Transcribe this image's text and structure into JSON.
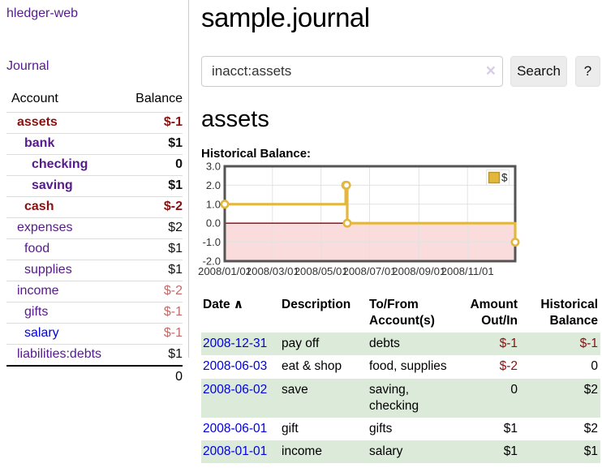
{
  "app": {
    "title": "hledger-web"
  },
  "sidebar": {
    "journal_label": "Journal",
    "accounts": {
      "account_header": "Account",
      "balance_header": "Balance",
      "rows": [
        {
          "name": "assets",
          "balance": "$-1",
          "level": 0,
          "emph": true,
          "name_color": "darkred",
          "balance_color": "darkred"
        },
        {
          "name": "bank",
          "balance": "$1",
          "level": 1,
          "emph": true,
          "name_color": "purple",
          "balance_color": "black"
        },
        {
          "name": "checking",
          "balance": "0",
          "level": 2,
          "emph": true,
          "name_color": "purple",
          "balance_color": "black"
        },
        {
          "name": "saving",
          "balance": "$1",
          "level": 2,
          "emph": true,
          "name_color": "purple",
          "balance_color": "black"
        },
        {
          "name": "cash",
          "balance": "$-2",
          "level": 1,
          "emph": true,
          "name_color": "darkred",
          "balance_color": "darkred"
        },
        {
          "name": "expenses",
          "balance": "$2",
          "level": 0,
          "emph": false,
          "name_color": "purple",
          "balance_color": "black"
        },
        {
          "name": "food",
          "balance": "$1",
          "level": 1,
          "emph": false,
          "name_color": "purple",
          "balance_color": "black"
        },
        {
          "name": "supplies",
          "balance": "$1",
          "level": 1,
          "emph": false,
          "name_color": "purple",
          "balance_color": "black"
        },
        {
          "name": "income",
          "balance": "$-2",
          "level": 0,
          "emph": false,
          "name_color": "purple",
          "balance_color": "softred"
        },
        {
          "name": "gifts",
          "balance": "$-1",
          "level": 1,
          "emph": false,
          "name_color": "purple",
          "balance_color": "softred"
        },
        {
          "name": "salary",
          "balance": "$-1",
          "level": 1,
          "emph": false,
          "name_color": "blue",
          "balance_color": "softred"
        },
        {
          "name": "liabilities:debts",
          "balance": "$1",
          "level": 0,
          "emph": false,
          "name_color": "purple",
          "balance_color": "black"
        }
      ],
      "total": "0"
    }
  },
  "main": {
    "title": "sample.journal",
    "search": {
      "value": "inacct:assets",
      "clear_icon": "×",
      "button_label": "Search",
      "help_label": "?"
    },
    "account_heading": "assets",
    "chart_title": "Historical Balance:"
  },
  "register": {
    "headers": [
      "Date",
      "Description",
      "To/From Account(s)",
      "Amount Out/In",
      "Historical Balance"
    ],
    "sort_icon": "∧",
    "rows": [
      {
        "date": "2008-12-31",
        "description": "pay off",
        "accounts": "debts",
        "amount": "$-1",
        "balance": "$-1",
        "amount_neg": true,
        "balance_neg": true,
        "stripe": true
      },
      {
        "date": "2008-06-03",
        "description": "eat & shop",
        "accounts": "food, supplies",
        "amount": "$-2",
        "balance": "0",
        "amount_neg": true,
        "balance_neg": false,
        "stripe": false
      },
      {
        "date": "2008-06-02",
        "description": "save",
        "accounts": "saving, checking",
        "amount": "0",
        "balance": "$2",
        "amount_neg": false,
        "balance_neg": false,
        "stripe": true
      },
      {
        "date": "2008-06-01",
        "description": "gift",
        "accounts": "gifts",
        "amount": "$1",
        "balance": "$2",
        "amount_neg": false,
        "balance_neg": false,
        "stripe": false
      },
      {
        "date": "2008-01-01",
        "description": "income",
        "accounts": "salary",
        "amount": "$1",
        "balance": "$1",
        "amount_neg": false,
        "balance_neg": false,
        "stripe": true
      }
    ]
  },
  "chart_data": {
    "type": "line",
    "step": true,
    "title": "Historical Balance",
    "series": [
      {
        "name": "$",
        "points": [
          {
            "date": "2008-01-01",
            "value": 1
          },
          {
            "date": "2008-06-01",
            "value": 2
          },
          {
            "date": "2008-06-02",
            "value": 2
          },
          {
            "date": "2008-06-03",
            "value": 0
          },
          {
            "date": "2008-12-31",
            "value": -1
          }
        ]
      }
    ],
    "x_range": [
      "2008-01-01",
      "2008-12-31"
    ],
    "ylim": [
      -2,
      3
    ],
    "y_ticks": [
      {
        "v": 3,
        "label": "3.0"
      },
      {
        "v": 2,
        "label": "2.0"
      },
      {
        "v": 1,
        "label": "1.0"
      },
      {
        "v": 0,
        "label": "0.0"
      },
      {
        "v": -1,
        "label": "-1.0"
      },
      {
        "v": -2,
        "label": "-2.0"
      }
    ],
    "x_ticks": [
      {
        "date": "2008-01-01",
        "label": "2008/01/01"
      },
      {
        "date": "2008-03-01",
        "label": "2008/03/01"
      },
      {
        "date": "2008-05-01",
        "label": "2008/05/01"
      },
      {
        "date": "2008-07-01",
        "label": "2008/07/01"
      },
      {
        "date": "2008-09-01",
        "label": "2008/09/01"
      },
      {
        "date": "2008-11-01",
        "label": "2008/11/01"
      }
    ],
    "grid": true,
    "negative_region": true,
    "legend_position": "top-right",
    "colors": {
      "line": "#e3b73d",
      "marker_fill": "#ffffff",
      "legend_square_border": "#b9952e",
      "negative_fill": "#fbdcdc",
      "zero_line": "#8b0000",
      "grid": "#e2e2e2",
      "border": "#545454",
      "tick_text": "#333333"
    }
  },
  "colors": {
    "link_purple": "#551a8b",
    "link_blue": "#0000dd",
    "negative": "#8b1010",
    "negative_soft": "#c46a6a",
    "row_stripe": "#dcead9"
  }
}
